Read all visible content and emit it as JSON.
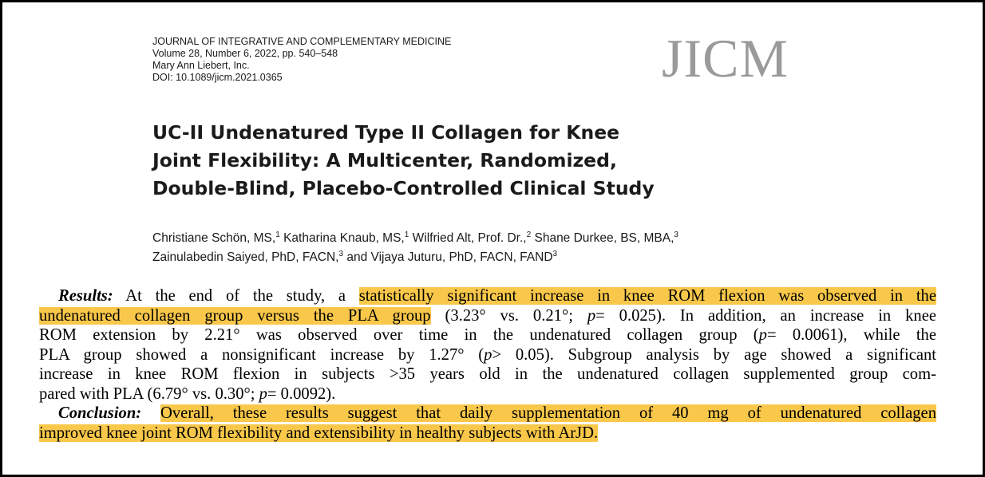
{
  "journal": {
    "name": "JOURNAL OF INTEGRATIVE AND COMPLEMENTARY MEDICINE",
    "volume": "Volume 28, Number 6, 2022, pp. 540–548",
    "publisher": "Mary Ann Liebert, Inc.",
    "doi": "DOI: 10.1089/jicm.2021.0365",
    "logo": "JICM"
  },
  "title": {
    "line1": "UC-II Undenatured Type II Collagen for Knee",
    "line2": "Joint Flexibility: A Multicenter, Randomized,",
    "line3": "Double-Blind, Placebo-Controlled Clinical Study"
  },
  "authors": {
    "a1": "Christiane Schön, MS,",
    "a1_sup": "1",
    "a2": "Katharina Knaub, MS,",
    "a2_sup": "1",
    "a3": "Wilfried Alt, Prof. Dr.,",
    "a3_sup": "2",
    "a4": "Shane Durkee, BS, MBA,",
    "a4_sup": "3",
    "a5": "Zainulabedin Saiyed, PhD, FACN,",
    "a5_sup": "3",
    "a6": "and Vijaya Juturu, PhD, FACN, FAND",
    "a6_sup": "3"
  },
  "results": {
    "label": "Results:",
    "l1_pre": "At the end of the study, a",
    "l1_hl": "statistically significant increase in knee ROM flexion was observed in the",
    "l2_hl": "undenatured collagen group versus the PLA group",
    "l2_a": "(3.23° vs. 0.21°;",
    "l2_p": "p",
    "l2_b": "= 0.025). In addition, an increase in knee",
    "l3_a": "ROM extension by 2.21° was observed over time in the undenatured collagen group (",
    "l3_p": "p",
    "l3_b": "= 0.0061), while the",
    "l4_a": "PLA group showed a nonsignificant increase by 1.27° (",
    "l4_p": "p",
    "l4_b": "> 0.05). Subgroup analysis by age showed a significant",
    "l5": "increase in knee ROM flexion in subjects >35 years old in the undenatured collagen supplemented group com-",
    "l6_a": "pared with PLA (6.79° vs. 0.30°;",
    "l6_p": "p",
    "l6_b": "= 0.0092)."
  },
  "conclusion": {
    "label": "Conclusion:",
    "l1_hl": "Overall, these results suggest that daily supplementation of 40 mg of undenatured collagen",
    "l2_hl": "improved knee joint ROM flexibility and extensibility in healthy subjects with ArJD."
  },
  "colors": {
    "highlight": "#f9c84a",
    "logo_gray": "#9a9a9a"
  }
}
